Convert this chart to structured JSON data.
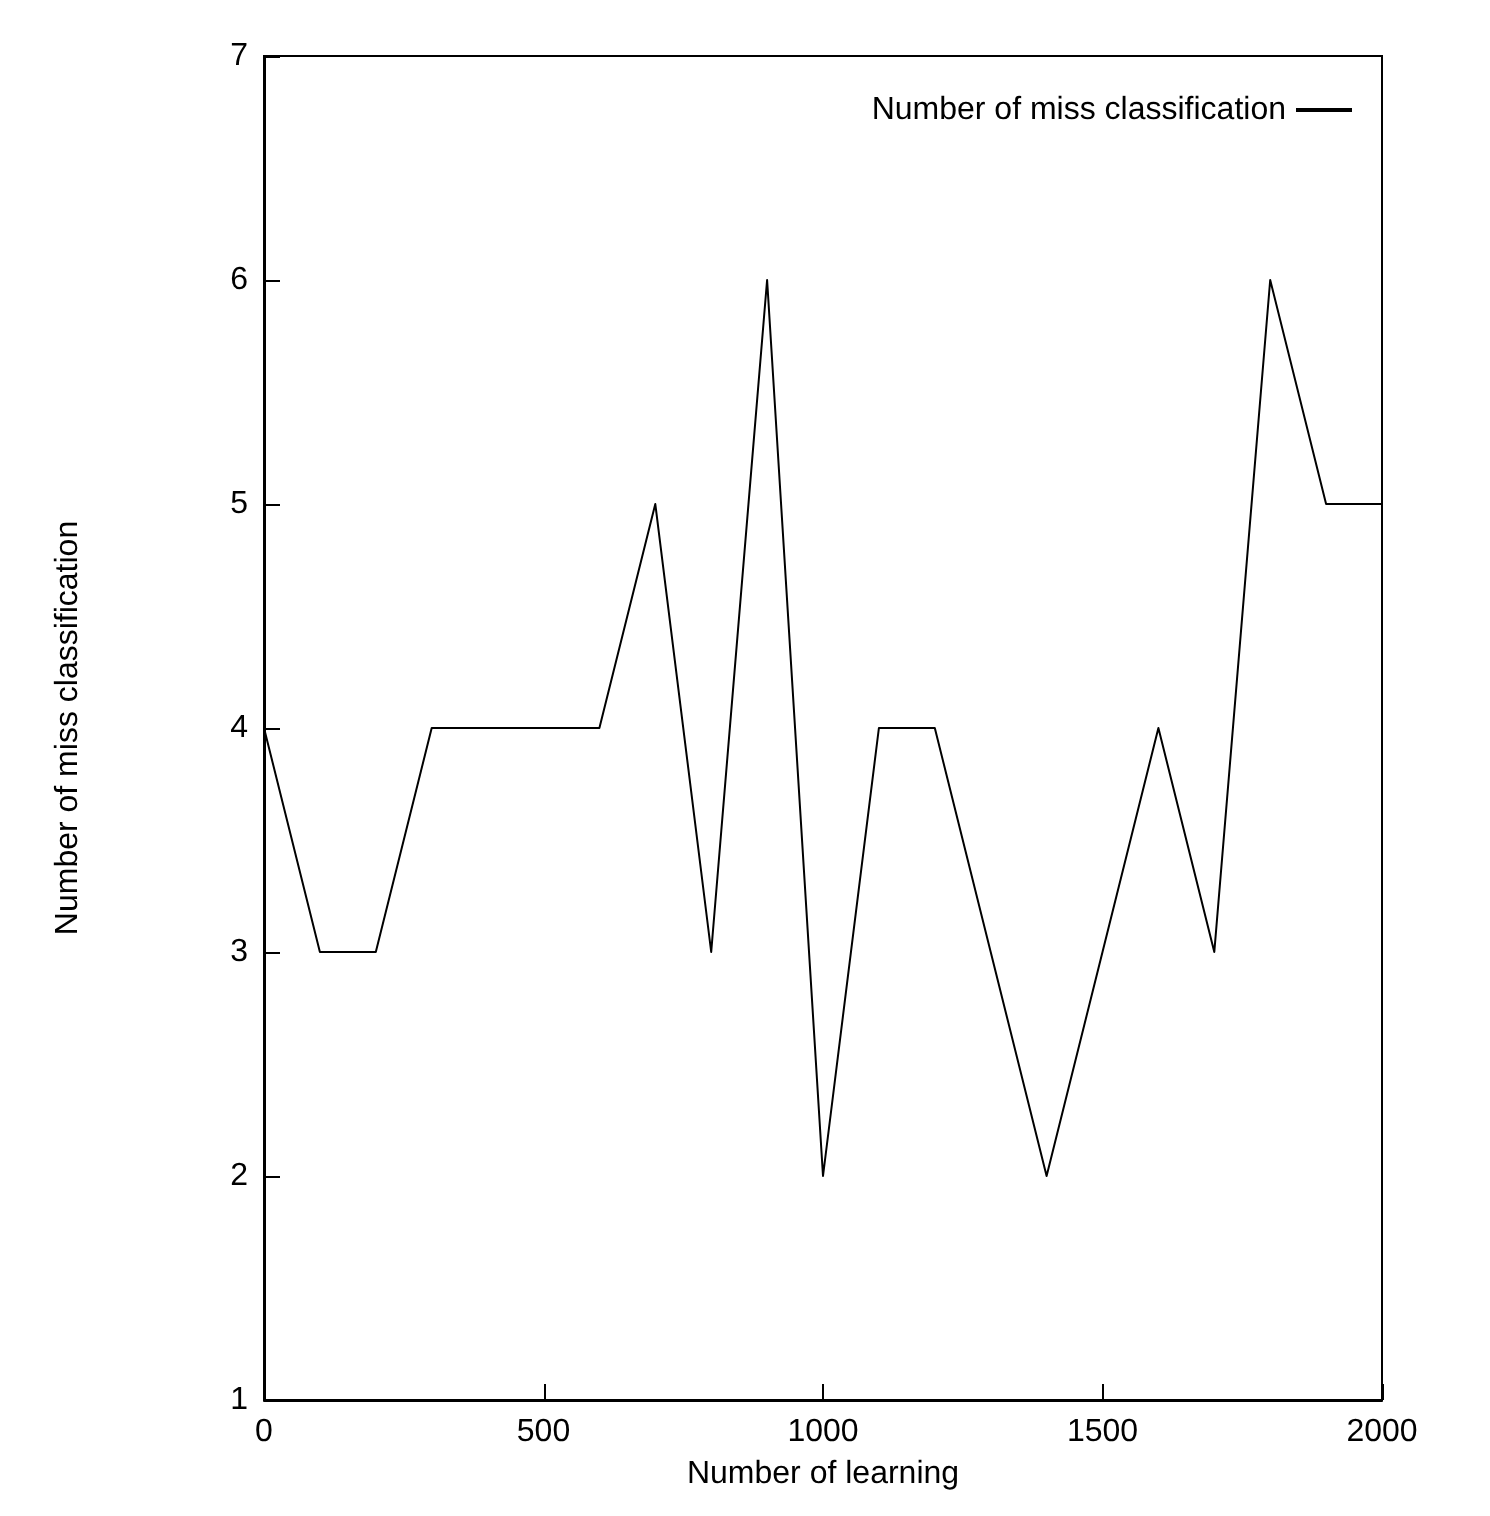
{
  "chart_data": {
    "type": "line",
    "xlabel": "Number of learning",
    "ylabel": "Number of miss classification",
    "x": [
      0,
      100,
      200,
      300,
      400,
      500,
      600,
      700,
      800,
      900,
      1000,
      1100,
      1200,
      1300,
      1400,
      1500,
      1600,
      1700,
      1800,
      1900,
      2000
    ],
    "series": [
      {
        "name": "Number of miss classification",
        "color": "#000000",
        "values": [
          4,
          3,
          3,
          4,
          4,
          4,
          4,
          5,
          3,
          6,
          2,
          4,
          4,
          3,
          2,
          3,
          4,
          3,
          6,
          5,
          5
        ]
      }
    ],
    "xlim": [
      0,
      2000
    ],
    "xticks": [
      0,
      500,
      1000,
      1500,
      2000
    ],
    "ylim": [
      1,
      7
    ],
    "yticks": [
      1,
      2,
      3,
      4,
      5,
      6,
      7
    ],
    "grid": false,
    "legend": "top right",
    "marker": "none",
    "line_style": "solid"
  }
}
